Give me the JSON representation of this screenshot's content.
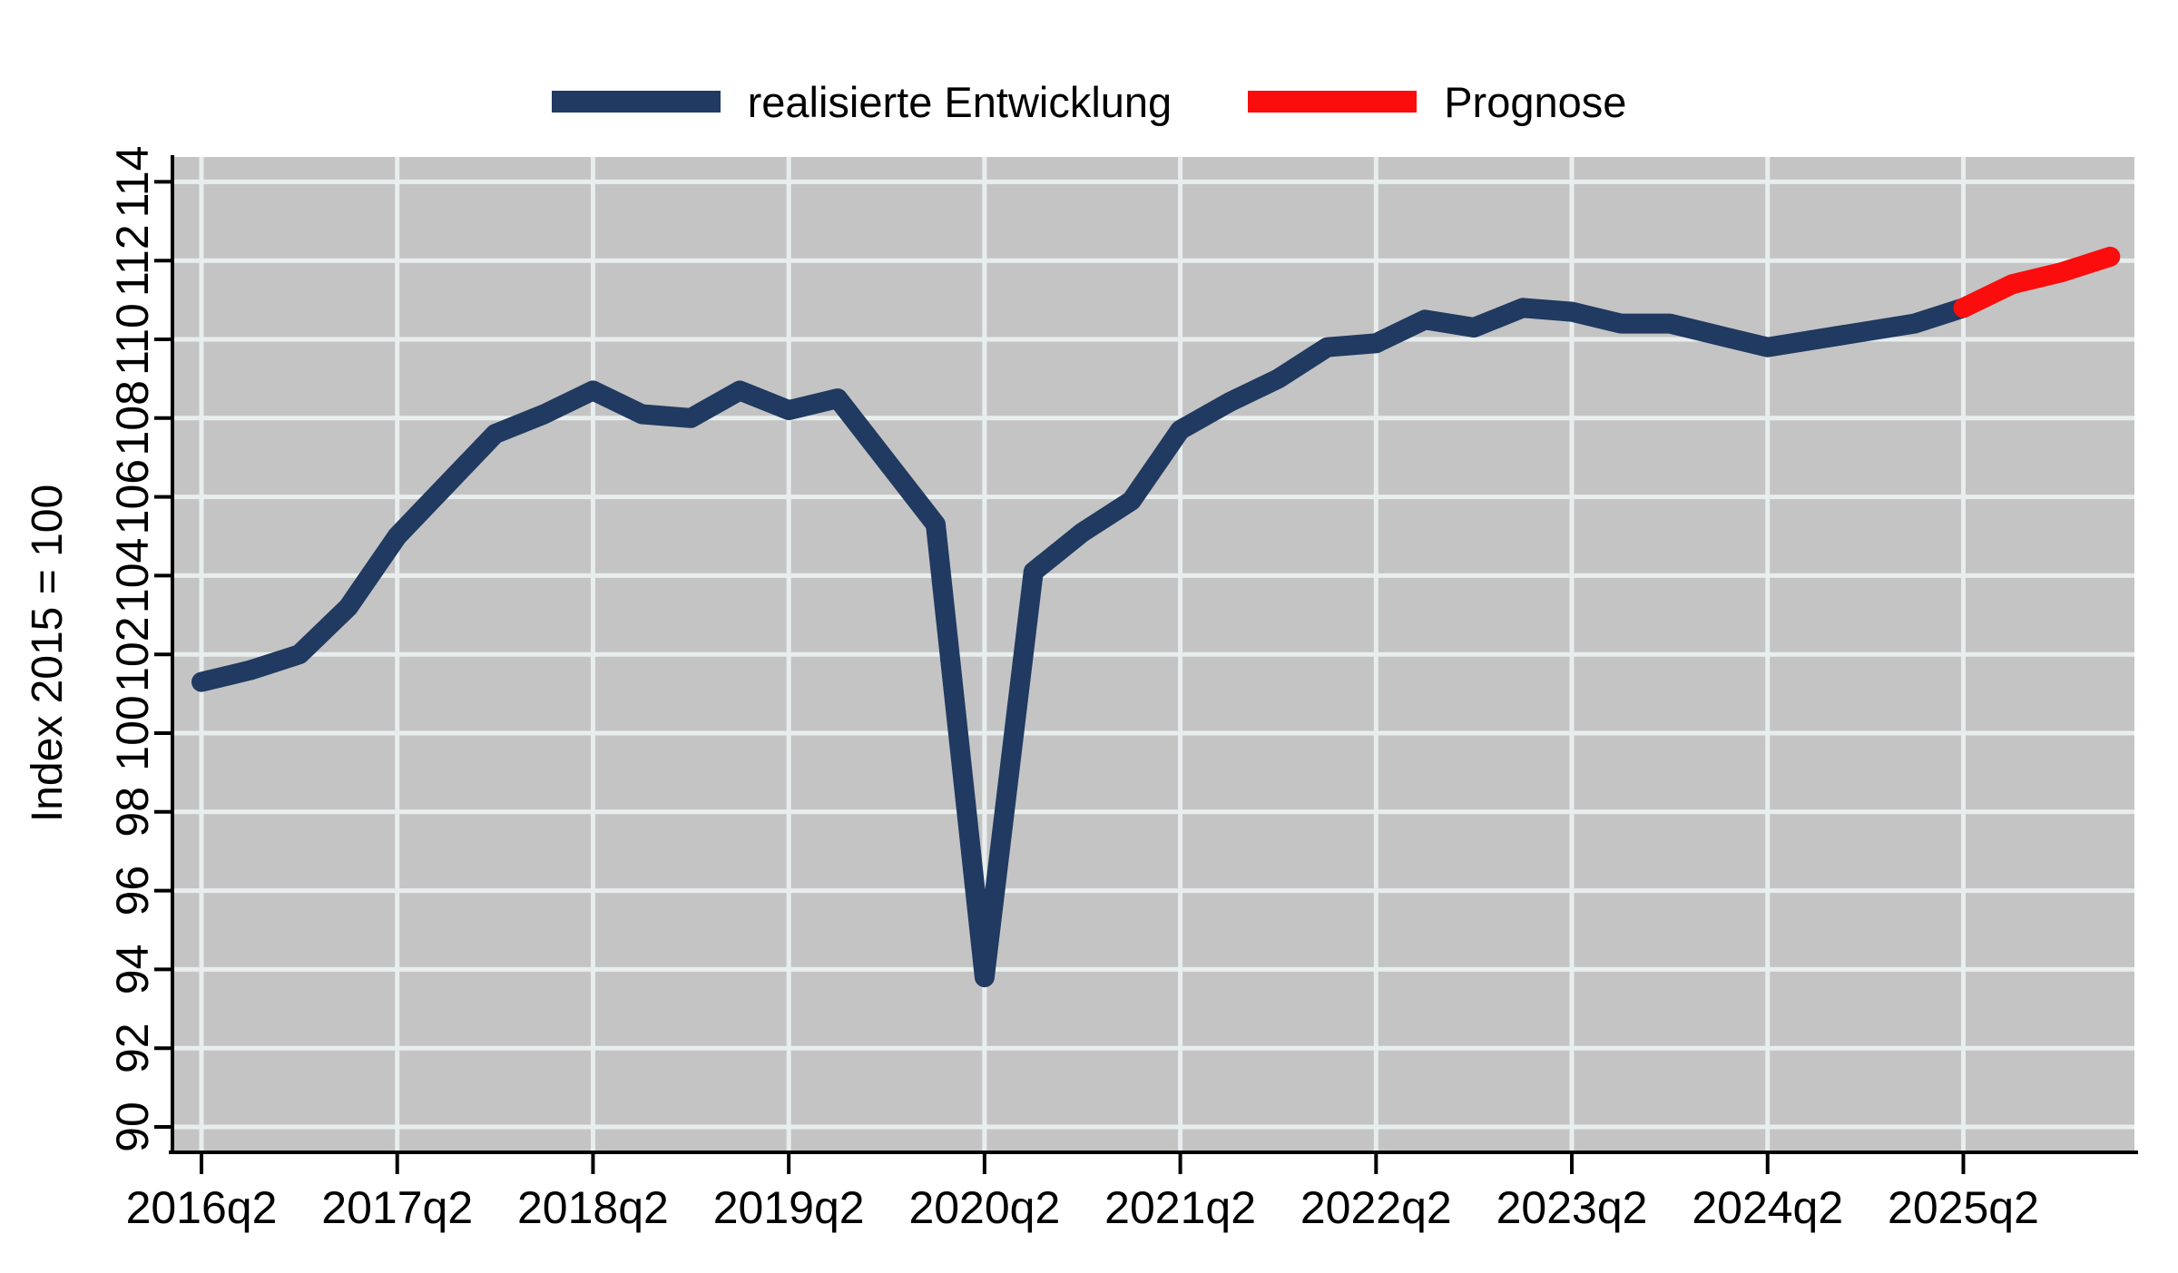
{
  "legend": {
    "realized_label": "realisierte Entwicklung",
    "forecast_label": "Prognose"
  },
  "chart_data": {
    "type": "line",
    "title": "",
    "xlabel": "",
    "ylabel": "Index 2015 = 100",
    "ylim": [
      90,
      114
    ],
    "ytick_step": 2,
    "yticks": [
      90,
      92,
      94,
      96,
      98,
      100,
      102,
      104,
      106,
      108,
      110,
      112,
      114
    ],
    "grid": true,
    "legend_position": "top-center",
    "plot_background": "#c4c4c4",
    "gridline_color": "#e8eeee",
    "x_unit": "quarters since 2016q2",
    "xticks": [
      {
        "pos": 0,
        "label": "2016q2"
      },
      {
        "pos": 4,
        "label": "2017q2"
      },
      {
        "pos": 8,
        "label": "2018q2"
      },
      {
        "pos": 12,
        "label": "2019q2"
      },
      {
        "pos": 16,
        "label": "2020q2"
      },
      {
        "pos": 20,
        "label": "2021q2"
      },
      {
        "pos": 24,
        "label": "2022q2"
      },
      {
        "pos": 28,
        "label": "2023q2"
      },
      {
        "pos": 32,
        "label": "2024q2"
      },
      {
        "pos": 36,
        "label": "2025q2"
      }
    ],
    "series": [
      {
        "name": "realisierte Entwicklung",
        "color": "#203a61",
        "x": [
          0,
          1,
          2,
          3,
          4,
          5,
          6,
          7,
          8,
          9,
          10,
          11,
          12,
          13,
          14,
          15,
          16,
          17,
          18,
          19,
          20,
          21,
          22,
          23,
          24,
          25,
          26,
          27,
          28,
          29,
          30,
          31,
          32,
          33,
          34,
          35,
          36
        ],
        "quarters": [
          "2016q2",
          "2016q3",
          "2016q4",
          "2017q1",
          "2017q2",
          "2017q3",
          "2017q4",
          "2018q1",
          "2018q2",
          "2018q3",
          "2018q4",
          "2019q1",
          "2019q2",
          "2019q3",
          "2019q4",
          "2020q1",
          "2020q2",
          "2020q3",
          "2020q4",
          "2021q1",
          "2021q2",
          "2021q3",
          "2021q4",
          "2022q1",
          "2022q2",
          "2022q3",
          "2022q4",
          "2023q1",
          "2023q2",
          "2023q3",
          "2023q4",
          "2024q1",
          "2024q2",
          "2024q3",
          "2024q4",
          "2025q1",
          "2025q2"
        ],
        "values": [
          101.3,
          101.6,
          102.0,
          103.2,
          105.0,
          106.3,
          107.6,
          108.1,
          108.7,
          108.1,
          108.0,
          108.7,
          108.2,
          108.5,
          106.9,
          105.3,
          93.8,
          104.1,
          105.1,
          105.9,
          107.7,
          108.4,
          109.0,
          109.8,
          109.9,
          110.5,
          110.3,
          110.8,
          110.7,
          110.4,
          110.4,
          110.1,
          109.8,
          110.0,
          110.2,
          110.4,
          110.8
        ]
      },
      {
        "name": "Prognose",
        "color": "#fb0d0d",
        "x": [
          36,
          37,
          38,
          39
        ],
        "quarters": [
          "2025q2",
          "2025q3",
          "2025q4",
          "2026q1"
        ],
        "values": [
          110.8,
          111.4,
          111.7,
          112.1
        ]
      }
    ]
  }
}
